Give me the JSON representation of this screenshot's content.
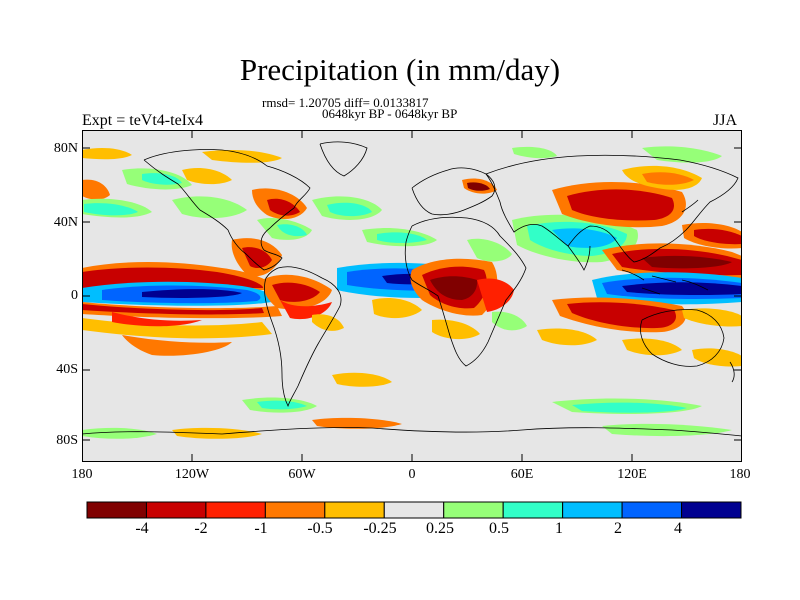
{
  "title": "Precipitation (in mm/day)",
  "stats": "rmsd= 1.20705 diff= 0.0133817",
  "period": "0648kyr BP - 0648kyr BP",
  "expt_label": "Expt = teVt4-teIx4",
  "season": "JJA",
  "lat_ticks": [
    "80N",
    "40N",
    "0",
    "40S",
    "80S"
  ],
  "lon_ticks": [
    "180",
    "120W",
    "60W",
    "0",
    "60E",
    "120E",
    "180"
  ],
  "colorbar": {
    "colors": [
      "#800000",
      "#c80000",
      "#ff2000",
      "#ff7800",
      "#ffbe00",
      "#e6e6e6",
      "#96ff78",
      "#32ffc8",
      "#00beff",
      "#0064ff",
      "#000090"
    ],
    "labels": [
      "-4",
      "-2",
      "-1",
      "-0.5",
      "-0.25",
      "0.25",
      "0.5",
      "1",
      "2",
      "4"
    ]
  }
}
